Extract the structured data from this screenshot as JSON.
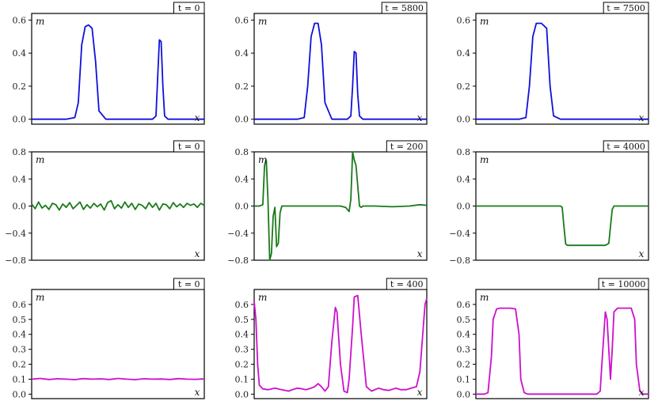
{
  "chart_data": [
    {
      "type": "line",
      "row": 0,
      "col": 0,
      "time_label": "t = 0",
      "xlabel": "x",
      "ylabel": "m",
      "color": "#1010dd",
      "ylim": [
        -0.03,
        0.64
      ],
      "yticks": [
        0.0,
        0.2,
        0.4,
        0.6
      ],
      "xlim": [
        0,
        1
      ],
      "x": [
        0,
        0.2,
        0.25,
        0.27,
        0.29,
        0.31,
        0.33,
        0.35,
        0.37,
        0.39,
        0.43,
        0.7,
        0.72,
        0.73,
        0.74,
        0.75,
        0.76,
        0.77,
        0.79,
        1
      ],
      "y": [
        0,
        0,
        0.01,
        0.1,
        0.45,
        0.56,
        0.57,
        0.55,
        0.35,
        0.05,
        0,
        0,
        0.02,
        0.25,
        0.48,
        0.47,
        0.2,
        0.02,
        0,
        0
      ]
    },
    {
      "type": "line",
      "row": 0,
      "col": 1,
      "time_label": "t = 5800",
      "xlabel": "x",
      "ylabel": "m",
      "color": "#1010dd",
      "ylim": [
        -0.03,
        0.64
      ],
      "yticks": [
        0.0,
        0.2,
        0.4,
        0.6
      ],
      "xlim": [
        0,
        1
      ],
      "x": [
        0,
        0.25,
        0.29,
        0.31,
        0.33,
        0.35,
        0.37,
        0.39,
        0.41,
        0.45,
        0.54,
        0.56,
        0.57,
        0.58,
        0.59,
        0.6,
        0.61,
        0.63,
        1
      ],
      "y": [
        0,
        0,
        0.01,
        0.2,
        0.5,
        0.58,
        0.58,
        0.45,
        0.1,
        0,
        0,
        0.02,
        0.2,
        0.41,
        0.4,
        0.15,
        0.02,
        0,
        0
      ]
    },
    {
      "type": "line",
      "row": 0,
      "col": 2,
      "time_label": "t = 7500",
      "xlabel": "x",
      "ylabel": "m",
      "color": "#1010dd",
      "ylim": [
        -0.03,
        0.64
      ],
      "yticks": [
        0.0,
        0.2,
        0.4,
        0.6
      ],
      "xlim": [
        0,
        1
      ],
      "x": [
        0,
        0.25,
        0.29,
        0.31,
        0.33,
        0.35,
        0.38,
        0.41,
        0.43,
        0.45,
        0.49,
        1
      ],
      "y": [
        0,
        0,
        0.01,
        0.2,
        0.5,
        0.58,
        0.58,
        0.55,
        0.2,
        0.02,
        0,
        0
      ]
    },
    {
      "type": "line",
      "row": 1,
      "col": 0,
      "time_label": "t = 0",
      "xlabel": "x",
      "ylabel": "m",
      "color": "#1a7a1a",
      "ylim": [
        -0.8,
        0.8
      ],
      "yticks": [
        -0.8,
        -0.4,
        0.0,
        0.4,
        0.8
      ],
      "xlim": [
        0,
        1
      ],
      "x": [
        0,
        0.02,
        0.04,
        0.06,
        0.08,
        0.1,
        0.12,
        0.14,
        0.16,
        0.18,
        0.2,
        0.22,
        0.24,
        0.26,
        0.28,
        0.3,
        0.32,
        0.34,
        0.36,
        0.38,
        0.4,
        0.42,
        0.44,
        0.46,
        0.48,
        0.5,
        0.52,
        0.54,
        0.56,
        0.58,
        0.6,
        0.62,
        0.64,
        0.66,
        0.68,
        0.7,
        0.72,
        0.74,
        0.76,
        0.78,
        0.8,
        0.82,
        0.84,
        0.86,
        0.88,
        0.9,
        0.92,
        0.94,
        0.96,
        0.98,
        1
      ],
      "y": [
        0.03,
        -0.04,
        0.06,
        -0.03,
        0.01,
        -0.05,
        0.04,
        0.02,
        -0.06,
        0.03,
        -0.02,
        0.05,
        -0.04,
        0.01,
        0.06,
        -0.05,
        0.02,
        -0.03,
        0.04,
        -0.01,
        0.03,
        -0.06,
        0.05,
        0.08,
        -0.04,
        0.02,
        -0.03,
        0.06,
        -0.02,
        0.04,
        -0.05,
        0.03,
        0.01,
        -0.04,
        0.05,
        -0.02,
        0.04,
        -0.06,
        0.03,
        0.02,
        -0.04,
        0.05,
        -0.01,
        0.03,
        -0.02,
        0.04,
        0.01,
        0.03,
        -0.02,
        0.04,
        0.01
      ]
    },
    {
      "type": "line",
      "row": 1,
      "col": 1,
      "time_label": "t = 200",
      "xlabel": "x",
      "ylabel": "m",
      "color": "#1a7a1a",
      "ylim": [
        -0.8,
        0.8
      ],
      "yticks": [
        -0.8,
        -0.4,
        0.0,
        0.4,
        0.8
      ],
      "xlim": [
        0,
        1
      ],
      "x": [
        0,
        0.03,
        0.05,
        0.06,
        0.07,
        0.08,
        0.09,
        0.1,
        0.11,
        0.12,
        0.13,
        0.14,
        0.15,
        0.16,
        0.17,
        0.18,
        0.19,
        0.2,
        0.3,
        0.5,
        0.53,
        0.55,
        0.56,
        0.57,
        0.58,
        0.59,
        0.6,
        0.61,
        0.62,
        0.63,
        0.7,
        0.8,
        0.9,
        0.96,
        1
      ],
      "y": [
        0,
        0,
        0.02,
        0.6,
        0.68,
        0.1,
        -0.8,
        -0.7,
        -0.15,
        -0.02,
        -0.6,
        -0.55,
        -0.1,
        0.0,
        0.0,
        0.0,
        0.0,
        0.0,
        0.0,
        0.0,
        -0.02,
        -0.08,
        0.1,
        0.8,
        0.68,
        0.6,
        0.3,
        0.0,
        -0.02,
        0.0,
        0.0,
        -0.01,
        0.0,
        0.02,
        0.01
      ]
    },
    {
      "type": "line",
      "row": 1,
      "col": 2,
      "time_label": "t = 4000",
      "xlabel": "x",
      "ylabel": "m",
      "color": "#1a7a1a",
      "ylim": [
        -0.8,
        0.8
      ],
      "yticks": [
        -0.8,
        -0.4,
        0.0,
        0.4,
        0.8
      ],
      "xlim": [
        0,
        1
      ],
      "x": [
        0,
        0.49,
        0.5,
        0.51,
        0.52,
        0.53,
        0.75,
        0.77,
        0.78,
        0.79,
        0.8,
        0.82,
        1
      ],
      "y": [
        0,
        0,
        -0.02,
        -0.3,
        -0.56,
        -0.58,
        -0.58,
        -0.55,
        -0.3,
        -0.05,
        0,
        0,
        0
      ]
    },
    {
      "type": "line",
      "row": 2,
      "col": 0,
      "time_label": "t = 0",
      "xlabel": "x",
      "ylabel": "m",
      "color": "#cc10cc",
      "ylim": [
        -0.03,
        0.7
      ],
      "yticks": [
        0.0,
        0.1,
        0.2,
        0.3,
        0.4,
        0.5,
        0.6
      ],
      "xlim": [
        0,
        1
      ],
      "x": [
        0,
        0.05,
        0.1,
        0.15,
        0.2,
        0.25,
        0.3,
        0.35,
        0.4,
        0.45,
        0.5,
        0.55,
        0.6,
        0.65,
        0.7,
        0.75,
        0.8,
        0.85,
        0.9,
        0.95,
        1
      ],
      "y": [
        0.1,
        0.105,
        0.098,
        0.103,
        0.1,
        0.097,
        0.104,
        0.1,
        0.102,
        0.098,
        0.105,
        0.1,
        0.097,
        0.103,
        0.1,
        0.101,
        0.098,
        0.104,
        0.1,
        0.099,
        0.102
      ]
    },
    {
      "type": "line",
      "row": 2,
      "col": 1,
      "time_label": "t = 400",
      "xlabel": "x",
      "ylabel": "m",
      "color": "#cc10cc",
      "ylim": [
        -0.03,
        0.7
      ],
      "yticks": [
        0.0,
        0.1,
        0.2,
        0.3,
        0.4,
        0.5,
        0.6
      ],
      "xlim": [
        0,
        1
      ],
      "x": [
        0,
        0.01,
        0.02,
        0.03,
        0.05,
        0.08,
        0.12,
        0.16,
        0.2,
        0.22,
        0.25,
        0.28,
        0.3,
        0.33,
        0.35,
        0.37,
        0.39,
        0.41,
        0.43,
        0.45,
        0.47,
        0.48,
        0.5,
        0.52,
        0.54,
        0.55,
        0.57,
        0.58,
        0.6,
        0.62,
        0.65,
        0.68,
        0.72,
        0.75,
        0.78,
        0.82,
        0.85,
        0.88,
        0.91,
        0.94,
        0.96,
        0.98,
        0.99,
        1
      ],
      "y": [
        0.62,
        0.5,
        0.2,
        0.06,
        0.035,
        0.03,
        0.04,
        0.03,
        0.02,
        0.03,
        0.04,
        0.035,
        0.03,
        0.04,
        0.05,
        0.07,
        0.05,
        0.02,
        0.05,
        0.35,
        0.58,
        0.55,
        0.2,
        0.02,
        0.01,
        0.1,
        0.45,
        0.65,
        0.66,
        0.4,
        0.05,
        0.02,
        0.04,
        0.03,
        0.025,
        0.04,
        0.03,
        0.03,
        0.04,
        0.05,
        0.15,
        0.45,
        0.6,
        0.64
      ]
    },
    {
      "type": "line",
      "row": 2,
      "col": 2,
      "time_label": "t = 10000",
      "xlabel": "x",
      "ylabel": "m",
      "color": "#cc10cc",
      "ylim": [
        -0.03,
        0.7
      ],
      "yticks": [
        0.0,
        0.1,
        0.2,
        0.3,
        0.4,
        0.5,
        0.6
      ],
      "xlim": [
        0,
        1
      ],
      "x": [
        0,
        0.05,
        0.07,
        0.09,
        0.1,
        0.12,
        0.14,
        0.2,
        0.23,
        0.25,
        0.26,
        0.28,
        0.3,
        0.7,
        0.72,
        0.73,
        0.75,
        0.76,
        0.78,
        0.79,
        0.8,
        0.82,
        0.84,
        0.9,
        0.92,
        0.93,
        0.95,
        0.97,
        1
      ],
      "y": [
        0,
        0,
        0.01,
        0.25,
        0.5,
        0.57,
        0.575,
        0.575,
        0.57,
        0.4,
        0.1,
        0.01,
        0,
        0,
        0.02,
        0.2,
        0.55,
        0.5,
        0.1,
        0.3,
        0.55,
        0.575,
        0.575,
        0.575,
        0.5,
        0.2,
        0.02,
        0,
        0
      ]
    }
  ]
}
